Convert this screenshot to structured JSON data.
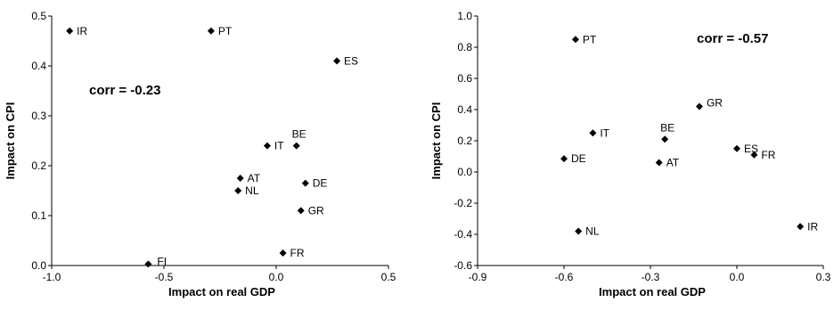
{
  "colors": {
    "marker": "#000000",
    "axis": "#000000",
    "background": "#ffffff"
  },
  "chart_data": [
    {
      "type": "scatter",
      "title": "",
      "xlabel": "Impact on real GDP",
      "ylabel": "Impact on CPI",
      "xlim": [
        -1.0,
        0.5
      ],
      "ylim": [
        0.0,
        0.5
      ],
      "xticks": [
        -1.0,
        -0.5,
        0.0,
        0.5
      ],
      "xtick_labels": [
        "-1.0",
        "-0.5",
        "0.0",
        "0.5"
      ],
      "yticks": [
        0.0,
        0.1,
        0.2,
        0.3,
        0.4,
        0.5
      ],
      "ytick_labels": [
        "0.0",
        "0.1",
        "0.2",
        "0.3",
        "0.4",
        "0.5"
      ],
      "grid": false,
      "legend": false,
      "annotation": "corr = -0.23",
      "points": [
        {
          "label": "IR",
          "x": -0.92,
          "y": 0.47
        },
        {
          "label": "PT",
          "x": -0.29,
          "y": 0.47
        },
        {
          "label": "ES",
          "x": 0.27,
          "y": 0.41
        },
        {
          "label": "BE",
          "x": 0.09,
          "y": 0.24
        },
        {
          "label": "IT",
          "x": -0.04,
          "y": 0.24
        },
        {
          "label": "AT",
          "x": -0.16,
          "y": 0.175
        },
        {
          "label": "DE",
          "x": 0.13,
          "y": 0.165
        },
        {
          "label": "NL",
          "x": -0.17,
          "y": 0.15
        },
        {
          "label": "GR",
          "x": 0.11,
          "y": 0.11
        },
        {
          "label": "FR",
          "x": 0.03,
          "y": 0.025
        },
        {
          "label": "FI",
          "x": -0.57,
          "y": 0.003
        }
      ]
    },
    {
      "type": "scatter",
      "title": "",
      "xlabel": "Impact on real GDP",
      "ylabel": "Impact on CPI",
      "xlim": [
        -0.9,
        0.3
      ],
      "ylim": [
        -0.6,
        1.0
      ],
      "xticks": [
        -0.9,
        -0.6,
        -0.3,
        0.0,
        0.3
      ],
      "xtick_labels": [
        "-0.9",
        "-0.6",
        "-0.3",
        "0.0",
        "0.3"
      ],
      "yticks": [
        -0.6,
        -0.4,
        -0.2,
        0.0,
        0.2,
        0.4,
        0.6,
        0.8,
        1.0
      ],
      "ytick_labels": [
        "-0.6",
        "-0.4",
        "-0.2",
        "0.0",
        "0.2",
        "0.4",
        "0.6",
        "0.8",
        "1.0"
      ],
      "grid": false,
      "legend": false,
      "annotation": "corr = -0.57",
      "points": [
        {
          "label": "PT",
          "x": -0.56,
          "y": 0.85
        },
        {
          "label": "GR",
          "x": -0.13,
          "y": 0.42
        },
        {
          "label": "BE",
          "x": -0.25,
          "y": 0.21
        },
        {
          "label": "IT",
          "x": -0.5,
          "y": 0.25
        },
        {
          "label": "ES",
          "x": 0.0,
          "y": 0.15
        },
        {
          "label": "FR",
          "x": 0.06,
          "y": 0.11
        },
        {
          "label": "DE",
          "x": -0.6,
          "y": 0.085
        },
        {
          "label": "AT",
          "x": -0.27,
          "y": 0.06
        },
        {
          "label": "NL",
          "x": -0.55,
          "y": -0.38
        },
        {
          "label": "IR",
          "x": 0.22,
          "y": -0.35
        }
      ]
    }
  ]
}
